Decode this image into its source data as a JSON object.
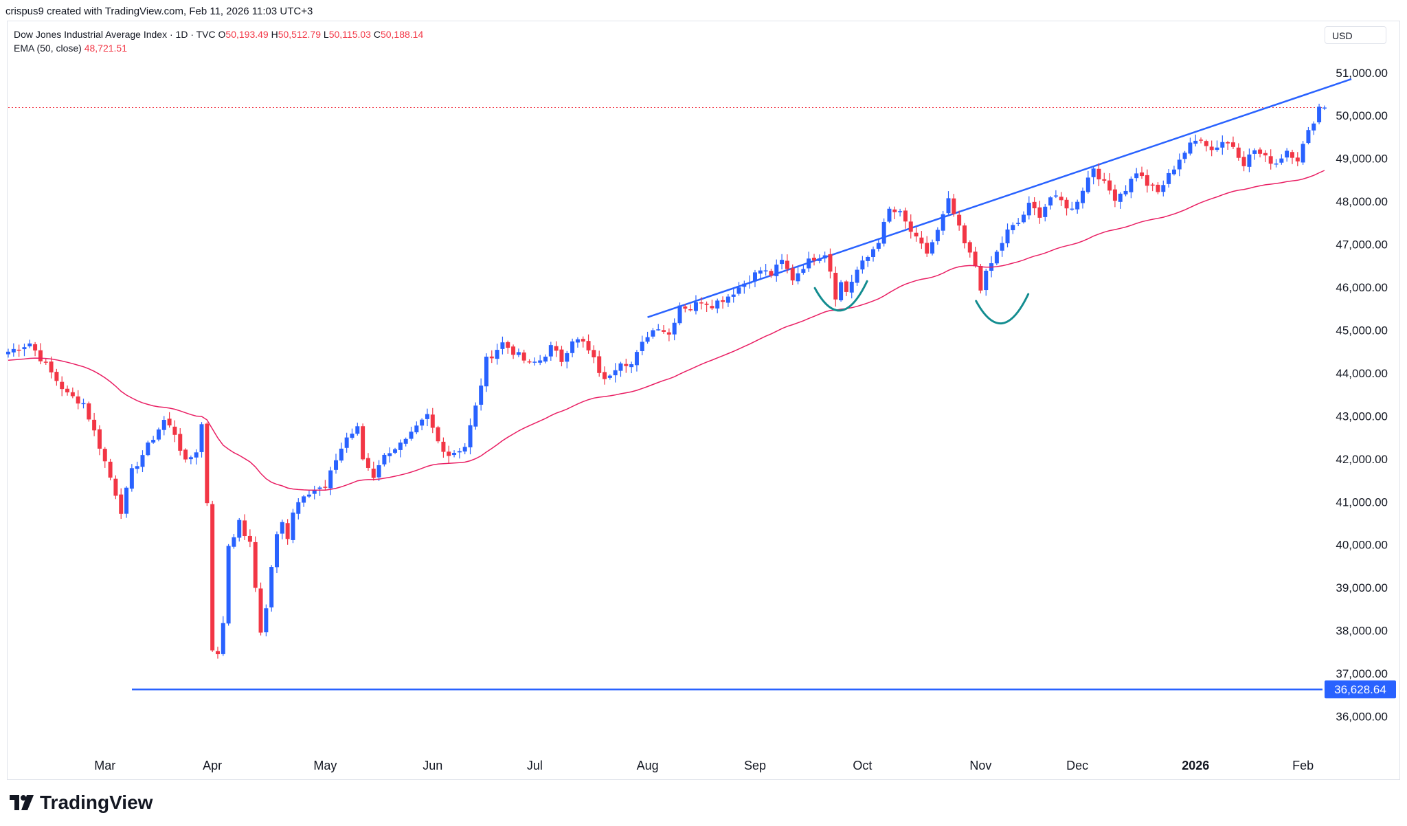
{
  "header": {
    "created_by": "crispus9 created with TradingView.com, Feb 11, 2026 11:03 UTC+3"
  },
  "legend": {
    "symbol": "Dow Jones Industrial Average Index · 1D · TVC",
    "o_label": "O",
    "o_value": "50,193.49",
    "h_label": "H",
    "h_value": "50,512.79",
    "l_label": "L",
    "l_value": "50,115.03",
    "c_label": "C",
    "c_value": "50,188.14",
    "ema_label": "EMA (50, close)",
    "ema_value": "48,721.51"
  },
  "currency": "USD",
  "brand": {
    "name": "TradingView"
  },
  "colors": {
    "up": "#2962ff",
    "down": "#f23645",
    "ema": "#e91e63",
    "trend": "#2962ff",
    "arc": "#138d90"
  },
  "chart_data": {
    "type": "candlestick",
    "title": "Dow Jones Industrial Average Index",
    "interval": "1D",
    "ylim": [
      35500,
      51500
    ],
    "y_ticks": [
      36000,
      37000,
      38000,
      39000,
      40000,
      41000,
      42000,
      43000,
      44000,
      45000,
      46000,
      47000,
      48000,
      49000,
      50000,
      51000
    ],
    "y_tick_labels": [
      "36,000.00",
      "37,000.00",
      "38,000.00",
      "39,000.00",
      "40,000.00",
      "41,000.00",
      "42,000.00",
      "43,000.00",
      "44,000.00",
      "45,000.00",
      "46,000.00",
      "47,000.00",
      "48,000.00",
      "49,000.00",
      "50,000.00",
      "51,000.00"
    ],
    "x_ticks": [
      {
        "index": 18,
        "label": "Mar",
        "bold": false
      },
      {
        "index": 38,
        "label": "Apr",
        "bold": false
      },
      {
        "index": 59,
        "label": "May",
        "bold": false
      },
      {
        "index": 79,
        "label": "Jun",
        "bold": false
      },
      {
        "index": 98,
        "label": "Jul",
        "bold": false
      },
      {
        "index": 119,
        "label": "Aug",
        "bold": false
      },
      {
        "index": 139,
        "label": "Sep",
        "bold": false
      },
      {
        "index": 159,
        "label": "Oct",
        "bold": false
      },
      {
        "index": 181,
        "label": "Nov",
        "bold": false
      },
      {
        "index": 199,
        "label": "Dec",
        "bold": false
      },
      {
        "index": 221,
        "label": "2026",
        "bold": true
      },
      {
        "index": 241,
        "label": "Feb",
        "bold": false
      }
    ],
    "anchors": [
      [
        0,
        44500
      ],
      [
        4,
        44700
      ],
      [
        8,
        44000
      ],
      [
        11,
        43500
      ],
      [
        14,
        43300
      ],
      [
        17,
        42300
      ],
      [
        20,
        41200
      ],
      [
        21,
        40800
      ],
      [
        23,
        41700
      ],
      [
        26,
        42300
      ],
      [
        29,
        42900
      ],
      [
        31,
        42600
      ],
      [
        33,
        41900
      ],
      [
        35,
        42200
      ],
      [
        36,
        42800
      ],
      [
        37,
        41000
      ],
      [
        38,
        37600
      ],
      [
        39,
        37400
      ],
      [
        40,
        38200
      ],
      [
        41,
        40000
      ],
      [
        43,
        40500
      ],
      [
        45,
        40000
      ],
      [
        47,
        38000
      ],
      [
        48,
        38500
      ],
      [
        49,
        39500
      ],
      [
        50,
        40200
      ],
      [
        51,
        40500
      ],
      [
        52,
        40200
      ],
      [
        53,
        40800
      ],
      [
        55,
        41200
      ],
      [
        57,
        41300
      ],
      [
        59,
        41300
      ],
      [
        61,
        42000
      ],
      [
        63,
        42500
      ],
      [
        65,
        42700
      ],
      [
        66,
        42000
      ],
      [
        68,
        41600
      ],
      [
        69,
        41900
      ],
      [
        71,
        42200
      ],
      [
        74,
        42400
      ],
      [
        76,
        42700
      ],
      [
        78,
        43000
      ],
      [
        80,
        42400
      ],
      [
        82,
        42100
      ],
      [
        85,
        42300
      ],
      [
        87,
        43200
      ],
      [
        89,
        44300
      ],
      [
        92,
        44700
      ],
      [
        94,
        44500
      ],
      [
        97,
        44200
      ],
      [
        99,
        44300
      ],
      [
        101,
        44600
      ],
      [
        103,
        44300
      ],
      [
        105,
        44800
      ],
      [
        107,
        44700
      ],
      [
        109,
        44300
      ],
      [
        111,
        43800
      ],
      [
        112,
        44000
      ],
      [
        114,
        44300
      ],
      [
        116,
        44200
      ],
      [
        119,
        44900
      ],
      [
        121,
        45100
      ],
      [
        123,
        44900
      ],
      [
        125,
        45600
      ],
      [
        127,
        45500
      ],
      [
        129,
        45700
      ],
      [
        131,
        45600
      ],
      [
        134,
        45800
      ],
      [
        136,
        46000
      ],
      [
        138,
        46200
      ],
      [
        140,
        46400
      ],
      [
        142,
        46300
      ],
      [
        144,
        46600
      ],
      [
        146,
        46200
      ],
      [
        148,
        46500
      ],
      [
        150,
        46700
      ],
      [
        152,
        46800
      ],
      [
        153,
        46400
      ],
      [
        154,
        45800
      ],
      [
        155,
        46100
      ],
      [
        156,
        45900
      ],
      [
        158,
        46400
      ],
      [
        160,
        46700
      ],
      [
        162,
        47100
      ],
      [
        164,
        47800
      ],
      [
        166,
        47700
      ],
      [
        168,
        47300
      ],
      [
        169,
        47100
      ],
      [
        171,
        46800
      ],
      [
        173,
        47300
      ],
      [
        175,
        48000
      ],
      [
        176,
        47700
      ],
      [
        178,
        47000
      ],
      [
        180,
        46500
      ],
      [
        181,
        46000
      ],
      [
        182,
        46300
      ],
      [
        184,
        46800
      ],
      [
        186,
        47300
      ],
      [
        188,
        47500
      ],
      [
        190,
        47900
      ],
      [
        192,
        47700
      ],
      [
        194,
        48100
      ],
      [
        196,
        48000
      ],
      [
        198,
        47800
      ],
      [
        200,
        48300
      ],
      [
        202,
        48800
      ],
      [
        204,
        48400
      ],
      [
        206,
        48100
      ],
      [
        208,
        48300
      ],
      [
        210,
        48700
      ],
      [
        212,
        48400
      ],
      [
        214,
        48200
      ],
      [
        216,
        48600
      ],
      [
        218,
        49000
      ],
      [
        220,
        49300
      ],
      [
        222,
        49500
      ],
      [
        224,
        49200
      ],
      [
        226,
        49400
      ],
      [
        228,
        49300
      ],
      [
        230,
        48900
      ],
      [
        232,
        49200
      ],
      [
        234,
        49000
      ],
      [
        236,
        48900
      ],
      [
        238,
        49200
      ],
      [
        240,
        49000
      ],
      [
        242,
        49600
      ],
      [
        244,
        50200
      ],
      [
        245,
        50190
      ]
    ],
    "ema_label": "EMA (50, close)",
    "ema_last": 48721.51,
    "support_level": 36628.64,
    "support_label": "36,628.64",
    "trendline": {
      "from_index": 119,
      "from_value": 45300,
      "to_index": 250,
      "to_value": 50850
    },
    "annotations": [
      {
        "type": "arc",
        "index": 155,
        "low": 45500
      },
      {
        "type": "arc",
        "index": 185,
        "low": 45200
      }
    ],
    "last_close": 50188.14
  }
}
